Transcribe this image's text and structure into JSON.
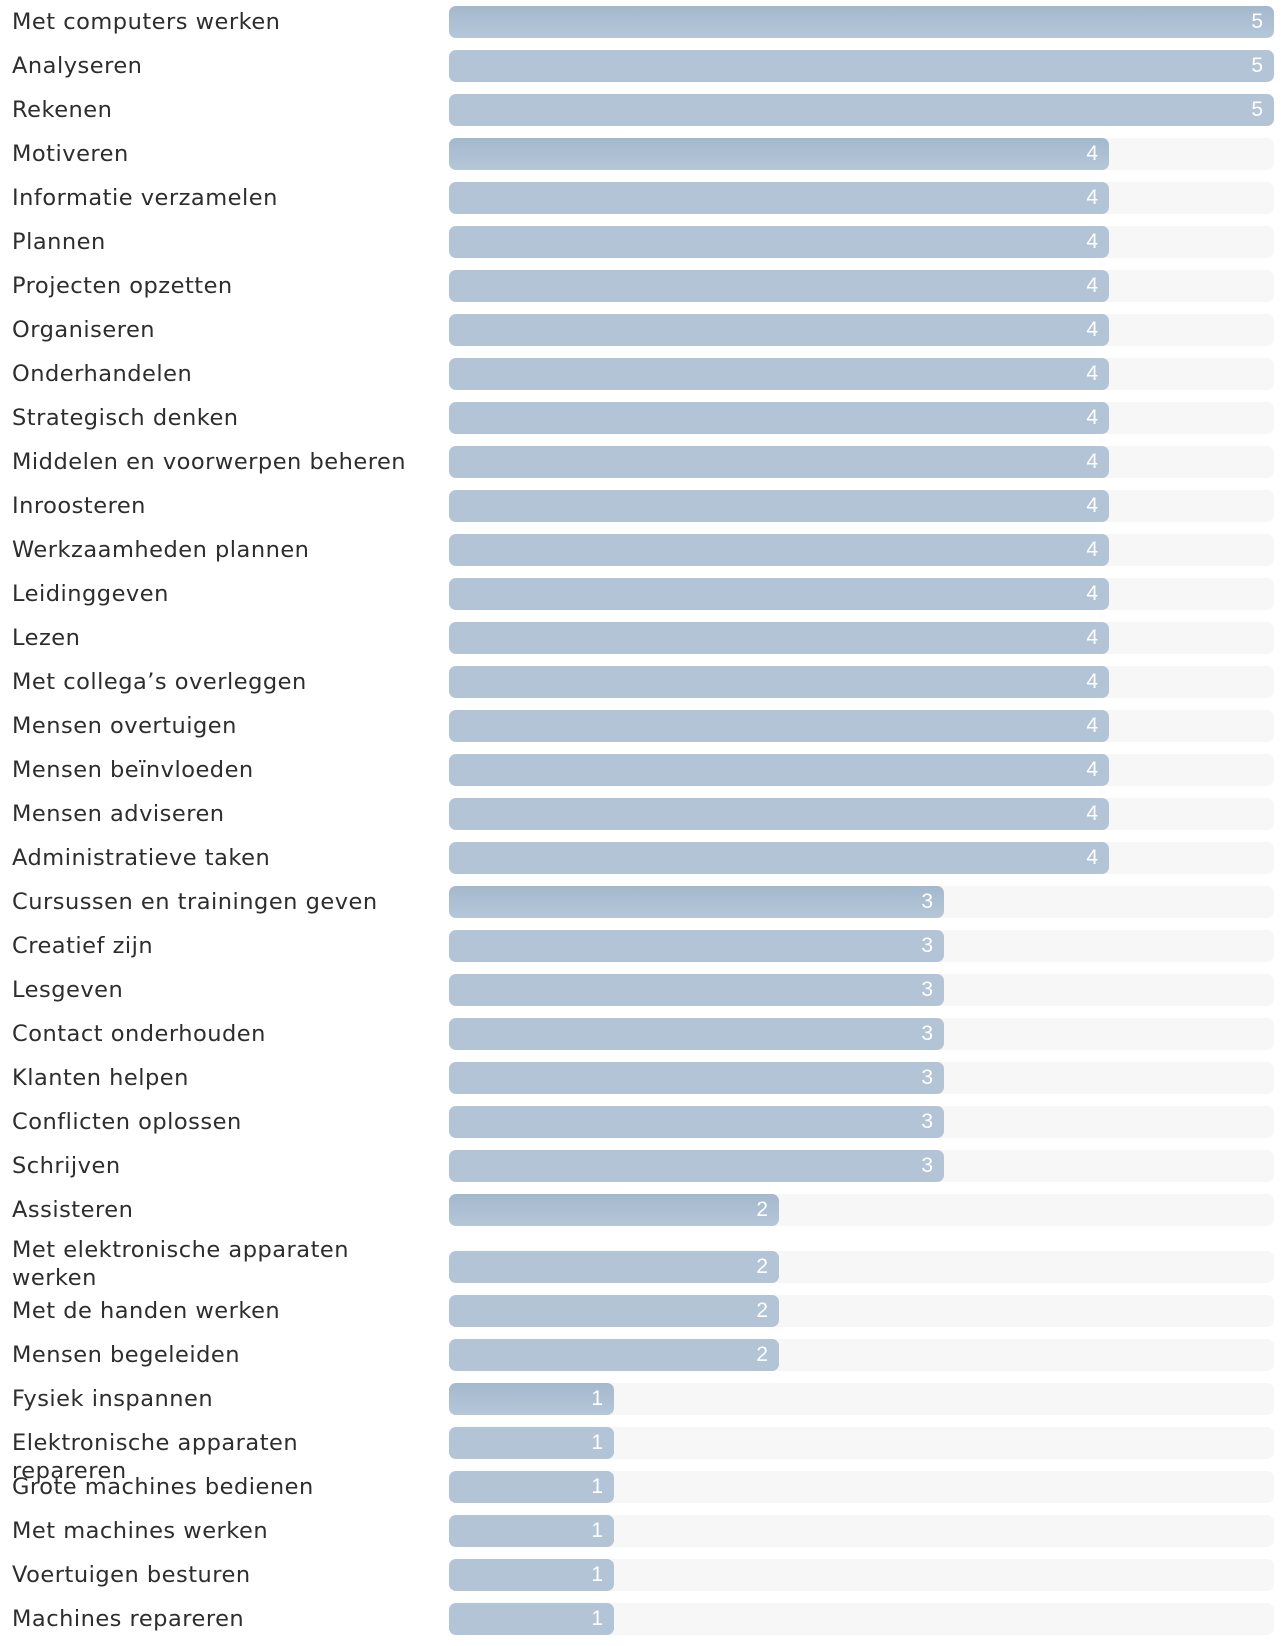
{
  "chart_data": {
    "type": "bar",
    "orientation": "horizontal",
    "xlim": [
      0,
      5
    ],
    "grid": false,
    "categories": [
      "Met computers werken",
      "Analyseren",
      "Rekenen",
      "Motiveren",
      "Informatie verzamelen",
      "Plannen",
      "Projecten opzetten",
      "Organiseren",
      "Onderhandelen",
      "Strategisch denken",
      "Middelen en voorwerpen beheren",
      "Inroosteren",
      "Werkzaamheden plannen",
      "Leidinggeven",
      "Lezen",
      "Met collega’s overleggen",
      "Mensen overtuigen",
      "Mensen beïnvloeden",
      "Mensen adviseren",
      "Administratieve taken",
      "Cursussen en trainingen geven",
      "Creatief zijn",
      "Lesgeven",
      "Contact onderhouden",
      "Klanten helpen",
      "Conflicten oplossen",
      "Schrijven",
      "Assisteren",
      "Met elektronische apparaten werken",
      "Met de handen werken",
      "Mensen begeleiden",
      "Fysiek inspannen",
      "Elektronische apparaten repareren",
      "Grote machines bedienen",
      "Met machines werken",
      "Voertuigen besturen",
      "Machines repareren"
    ],
    "values": [
      5,
      5,
      5,
      4,
      4,
      4,
      4,
      4,
      4,
      4,
      4,
      4,
      4,
      4,
      4,
      4,
      4,
      4,
      4,
      4,
      3,
      3,
      3,
      3,
      3,
      3,
      3,
      2,
      2,
      2,
      2,
      1,
      1,
      1,
      1,
      1,
      1
    ],
    "colors": {
      "bar": "#b2c4d6",
      "bar_group_first": "#a4b8cd",
      "track": "#f7f7f7",
      "value_text": "#ffffff",
      "label_text": "#2d2d2d"
    }
  }
}
